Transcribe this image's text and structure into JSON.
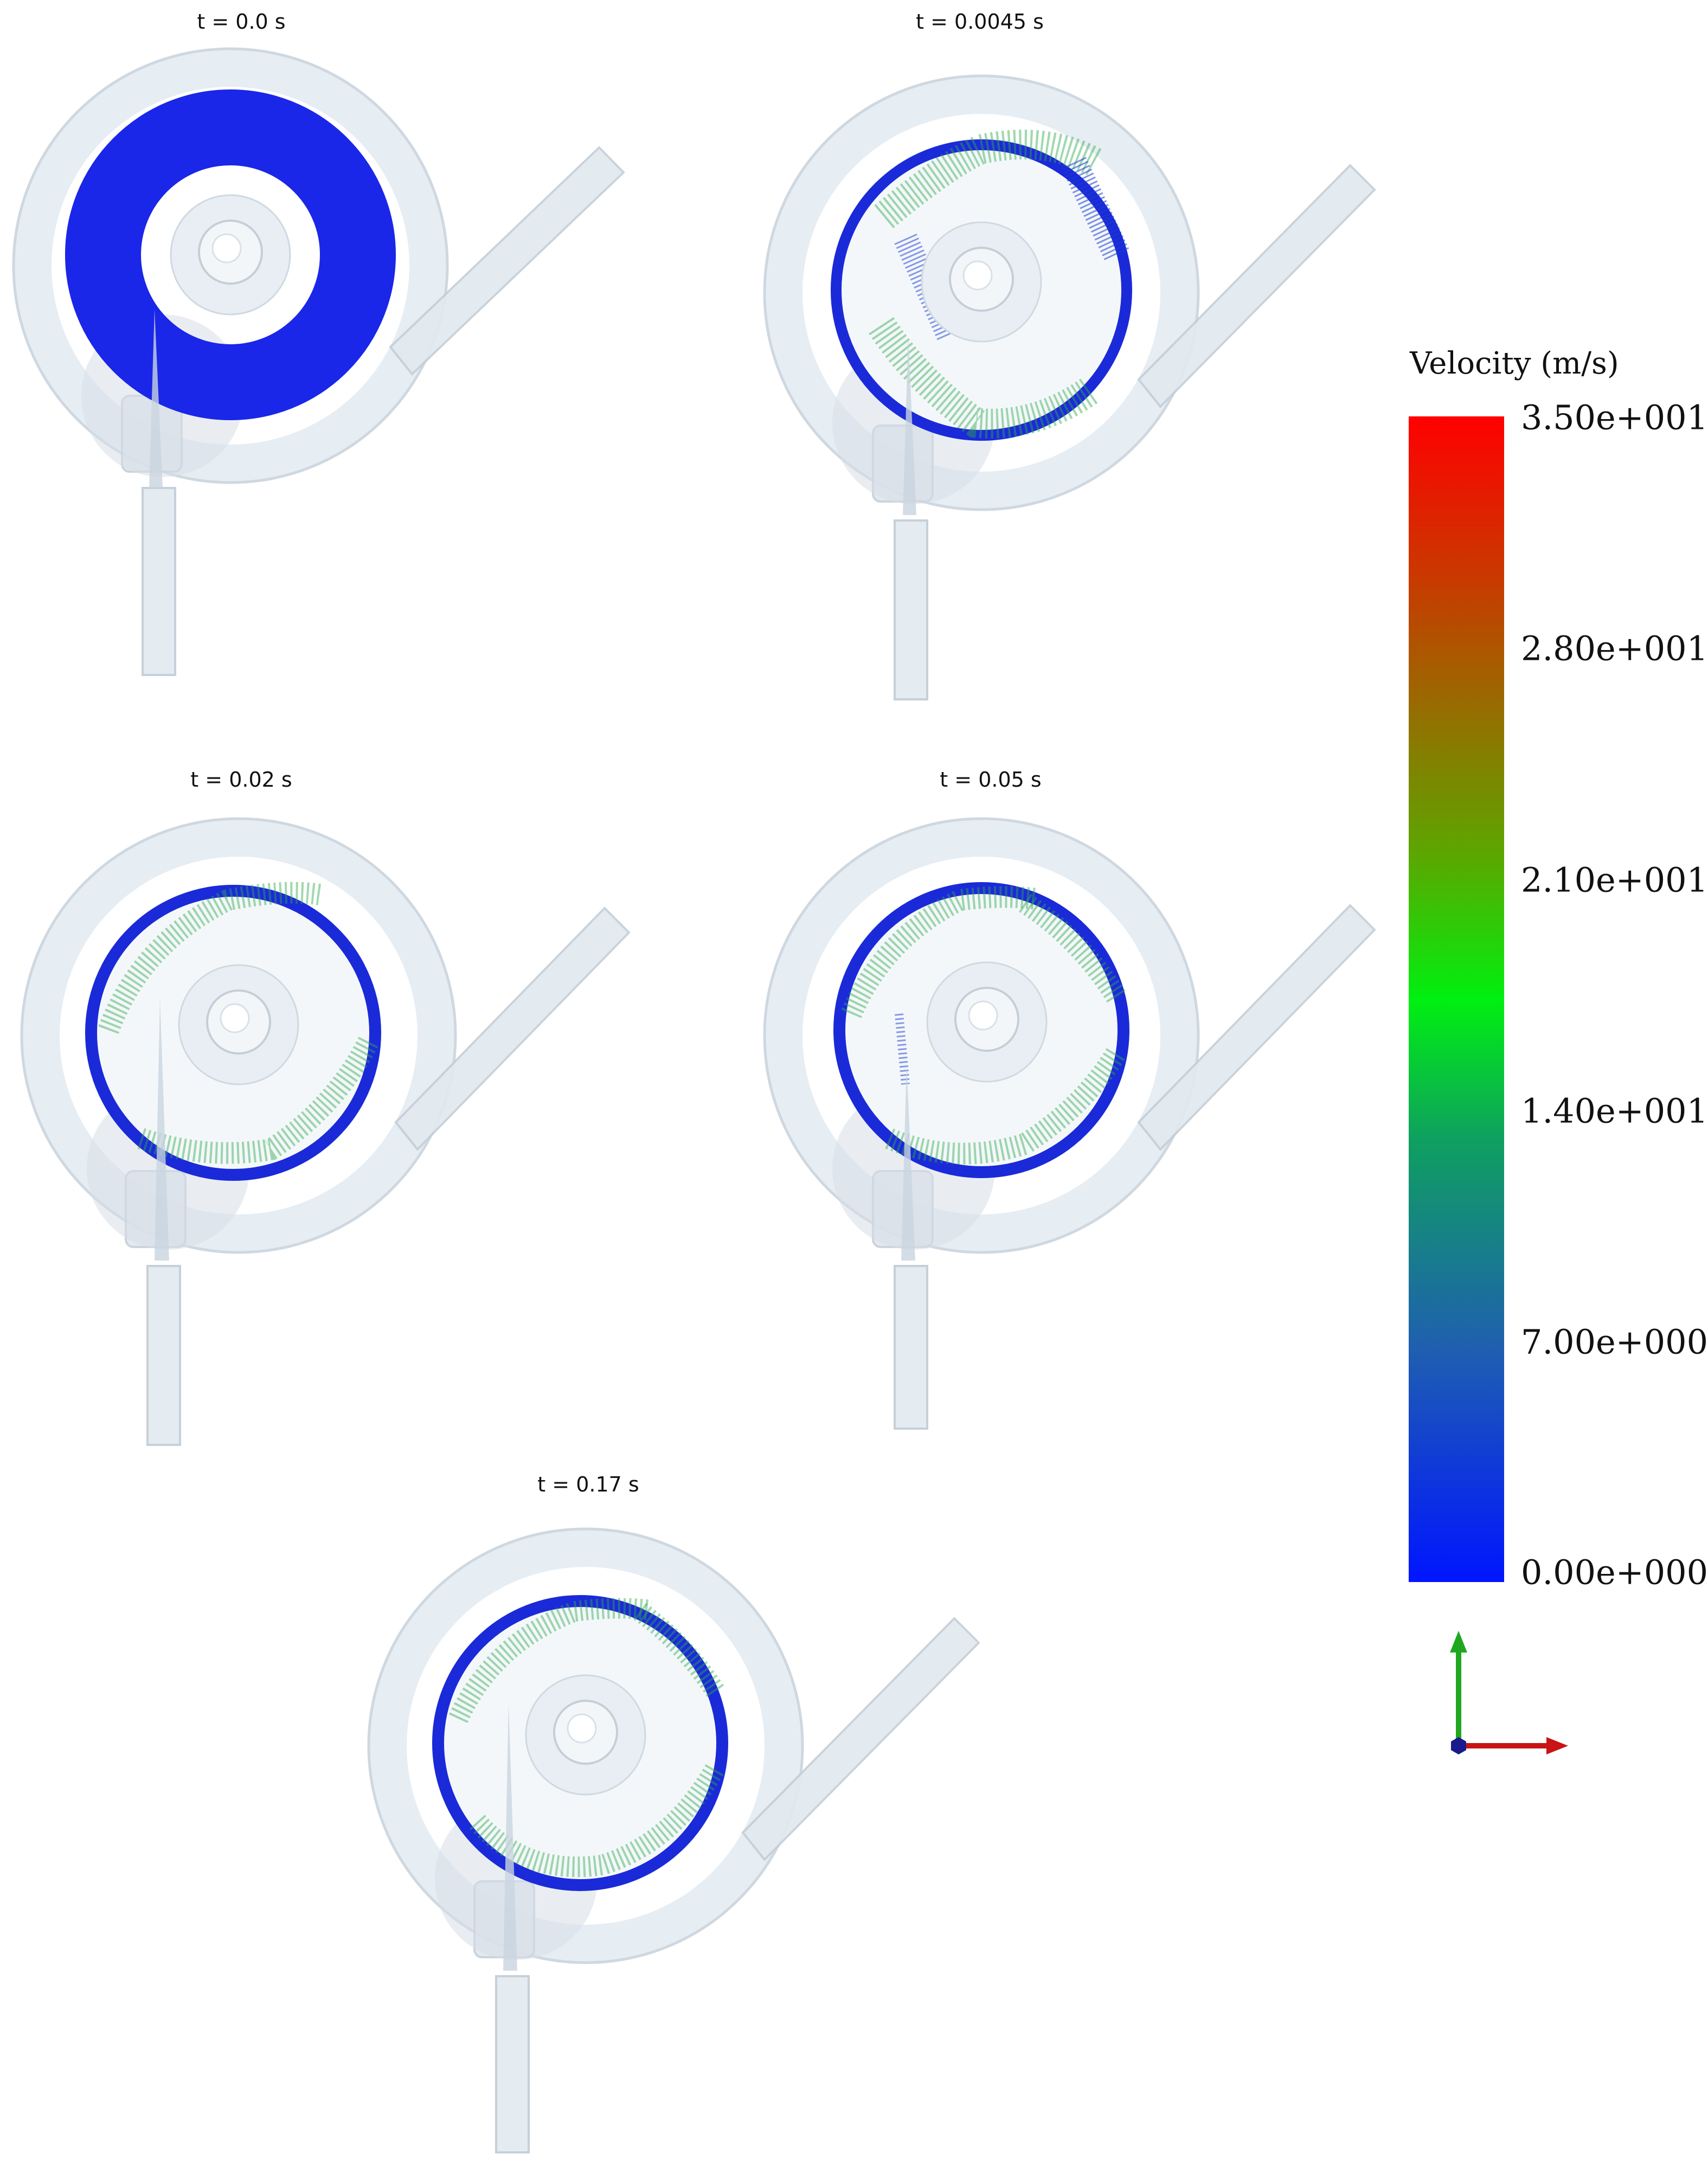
{
  "panels": [
    {
      "time_label": "t = 0.0 s",
      "state": "initial"
    },
    {
      "time_label": "t = 0.0045 s",
      "state": "early"
    },
    {
      "time_label": "t = 0.02 s",
      "state": "developed"
    },
    {
      "time_label": "t = 0.05 s",
      "state": "developed"
    },
    {
      "time_label": "t = 0.17 s",
      "state": "developed"
    }
  ],
  "legend": {
    "title": "Velocity (m/s)",
    "ticks": [
      "3.50e+001",
      "2.80e+001",
      "2.10e+001",
      "1.40e+001",
      "7.00e+000",
      "0.00e+000"
    ],
    "colors": {
      "min": "#0015ff",
      "mid": "#00f010",
      "max": "#ff0000"
    }
  },
  "axes": {
    "y_color": "#1fa81f",
    "x_color": "#c81414",
    "z_color": "#1a1a8c"
  }
}
